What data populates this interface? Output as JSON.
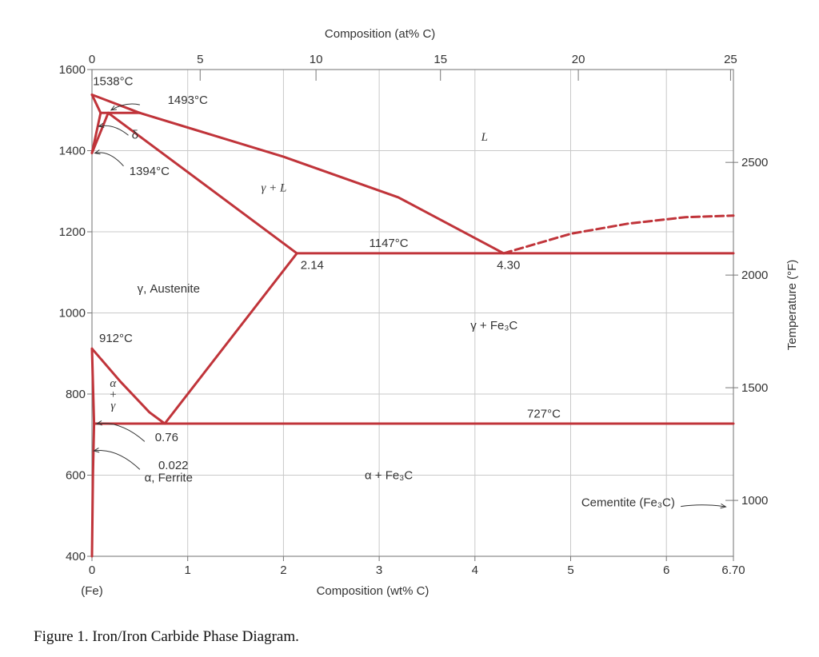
{
  "caption": "Figure 1. Iron/Iron Carbide Phase Diagram.",
  "chart_data": {
    "type": "line",
    "title": "",
    "xlabel": "Composition (wt% C)",
    "ylabel": "",
    "xlim": [
      0,
      6.7
    ],
    "ylim": [
      400,
      1600
    ],
    "x_ticks": [
      "0",
      "1",
      "2",
      "3",
      "4",
      "5",
      "6",
      "6.70"
    ],
    "x_tick_values": [
      0,
      1,
      2,
      3,
      4,
      5,
      6,
      6.7
    ],
    "x_sublabel": "(Fe)",
    "y_ticks": [
      "400",
      "600",
      "800",
      "1000",
      "1200",
      "1400",
      "1600"
    ],
    "y_tick_values": [
      400,
      600,
      800,
      1000,
      1200,
      1400,
      1600
    ],
    "top_axis": {
      "label": "Composition (at% C)",
      "ticks": [
        "0",
        "5",
        "10",
        "15",
        "20",
        "25"
      ],
      "tick_wt_values": [
        0,
        1.13,
        2.34,
        3.64,
        5.08,
        6.67
      ]
    },
    "right_axis": {
      "label": "Temperature (°F)",
      "ticks": [
        "1000",
        "1500",
        "2000",
        "2500"
      ],
      "tick_values_C": [
        537.8,
        815.6,
        1093.3,
        1371.1
      ]
    },
    "grid": true,
    "line_color": "#c0343a",
    "grid_color": "#c9c9c9",
    "phase_boundaries": [
      {
        "segments": [
          [
            0,
            1538
          ],
          [
            0.09,
            1493
          ]
        ]
      },
      {
        "segments": [
          [
            0,
            1538
          ],
          [
            0.5,
            1493
          ]
        ]
      },
      {
        "segments": [
          [
            0.09,
            1493
          ],
          [
            0.5,
            1493
          ]
        ]
      },
      {
        "segments": [
          [
            0,
            1394
          ],
          [
            0.09,
            1493
          ]
        ]
      },
      {
        "segments": [
          [
            0,
            1394
          ],
          [
            0.17,
            1493
          ]
        ]
      },
      {
        "segments": [
          [
            0.17,
            1493
          ],
          [
            2.14,
            1147
          ]
        ]
      },
      {
        "segments": [
          [
            0.5,
            1493
          ],
          [
            2.0,
            1385
          ],
          [
            3.2,
            1285
          ],
          [
            4.3,
            1147
          ]
        ]
      },
      {
        "segments": [
          [
            2.14,
            1147
          ],
          [
            6.7,
            1147
          ]
        ]
      },
      {
        "segments": [
          [
            2.14,
            1147
          ],
          [
            0.76,
            727
          ]
        ]
      },
      {
        "segments": [
          [
            0,
            912
          ],
          [
            0.3,
            830
          ],
          [
            0.6,
            755
          ],
          [
            0.76,
            727
          ]
        ]
      },
      {
        "segments": [
          [
            0,
            912
          ],
          [
            0.022,
            727
          ]
        ]
      },
      {
        "segments": [
          [
            0.022,
            727
          ],
          [
            6.7,
            727
          ]
        ]
      },
      {
        "segments": [
          [
            0.022,
            727
          ],
          [
            0.01,
            600
          ],
          [
            0,
            400
          ]
        ]
      }
    ],
    "dashed_boundary": {
      "segments": [
        [
          4.3,
          1147
        ],
        [
          5.0,
          1195
        ],
        [
          5.6,
          1220
        ],
        [
          6.2,
          1236
        ],
        [
          6.7,
          1240
        ]
      ]
    },
    "region_labels": [
      {
        "text": "L",
        "x": 4.1,
        "y": 1425,
        "italic": true
      },
      {
        "text": "γ + L",
        "x": 1.9,
        "y": 1300,
        "italic": true
      },
      {
        "text": "γ, Austenite",
        "x": 0.8,
        "y": 1050,
        "italic": false
      },
      {
        "text": "γ + Fe₃C",
        "x": 4.2,
        "y": 960,
        "italic": false
      },
      {
        "text": "α + Fe₃C",
        "x": 3.1,
        "y": 590,
        "italic": false
      }
    ],
    "point_labels": [
      {
        "text": "1538°C",
        "x": 0.22,
        "y": 1562
      },
      {
        "text": "1493°C",
        "x": 1.0,
        "y": 1515
      },
      {
        "text": "δ",
        "x": 0.45,
        "y": 1430
      },
      {
        "text": "1394°C",
        "x": 0.6,
        "y": 1340
      },
      {
        "text": "1147°C",
        "x": 3.1,
        "y": 1163
      },
      {
        "text": "2.14",
        "x": 2.3,
        "y": 1108
      },
      {
        "text": "4.30",
        "x": 4.35,
        "y": 1108
      },
      {
        "text": "912°C",
        "x": 0.25,
        "y": 928
      },
      {
        "text": "727°C",
        "x": 4.72,
        "y": 742
      },
      {
        "text": "0.76",
        "x": 0.78,
        "y": 684
      },
      {
        "text": "0.022",
        "x": 0.85,
        "y": 615
      },
      {
        "text": "α, Ferrite",
        "x": 0.8,
        "y": 584
      },
      {
        "text": "Cementite (Fe₃C)",
        "x": 5.6,
        "y": 523
      }
    ],
    "alpha_gamma_label": [
      "α",
      "+",
      "γ"
    ],
    "alpha_gamma_position": {
      "x": 0.22,
      "y": 790
    }
  }
}
